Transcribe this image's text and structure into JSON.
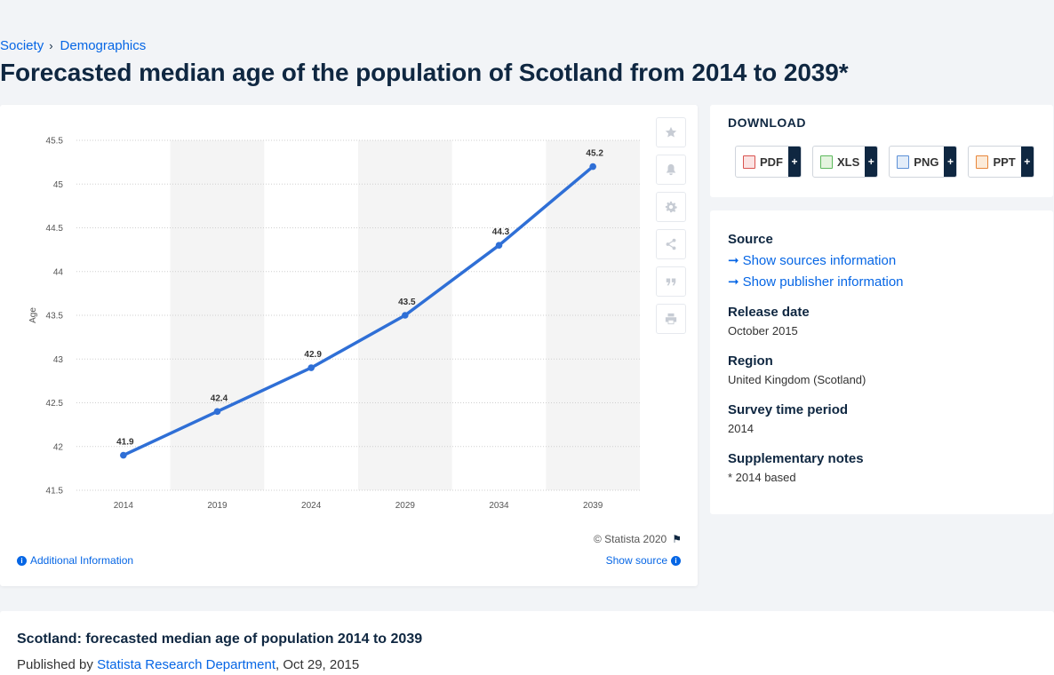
{
  "breadcrumb": {
    "items": [
      "Society",
      "Demographics"
    ],
    "separator": "›"
  },
  "page_title": "Forecasted median age of the population of Scotland from 2014 to 2039*",
  "chart": {
    "copyright": "© Statista 2020",
    "additional_info": "Additional Information",
    "show_source": "Show source"
  },
  "tools": [
    "star-icon",
    "bell-icon",
    "gear-icon",
    "share-icon",
    "quote-icon",
    "print-icon"
  ],
  "download": {
    "title": "DOWNLOAD",
    "buttons": [
      "PDF",
      "XLS",
      "PNG",
      "PPT"
    ],
    "plus": "+"
  },
  "source_panel": {
    "source_heading": "Source",
    "show_sources": "Show sources information",
    "show_publisher": "Show publisher information",
    "release_heading": "Release date",
    "release_value": "October 2015",
    "region_heading": "Region",
    "region_value": "United Kingdom (Scotland)",
    "survey_heading": "Survey time period",
    "survey_value": "2014",
    "notes_heading": "Supplementary notes",
    "notes_value": "* 2014 based"
  },
  "bottom": {
    "title": "Scotland: forecasted median age of population 2014 to 2039",
    "published_prefix": "Published by",
    "publisher": "Statista Research Department",
    "date": ", Oct 29, 2015"
  },
  "colors": {
    "line": "#2f6fd6",
    "accent": "#0666e5",
    "band": "#f4f4f4"
  },
  "chart_data": {
    "type": "line",
    "categories": [
      "2014",
      "2019",
      "2024",
      "2029",
      "2034",
      "2039"
    ],
    "values": [
      41.9,
      42.4,
      42.9,
      43.5,
      44.3,
      45.2
    ],
    "data_labels": [
      "41.9",
      "42.4",
      "42.9",
      "43.5",
      "44.3",
      "45.2"
    ],
    "ylabel": "Age",
    "xlabel": "",
    "ylim": [
      41.5,
      45.5
    ],
    "yticks": [
      "41.5",
      "42",
      "42.5",
      "43",
      "43.5",
      "44",
      "44.5",
      "45",
      "45.5"
    ],
    "grid": true,
    "alternating_bands": true
  }
}
